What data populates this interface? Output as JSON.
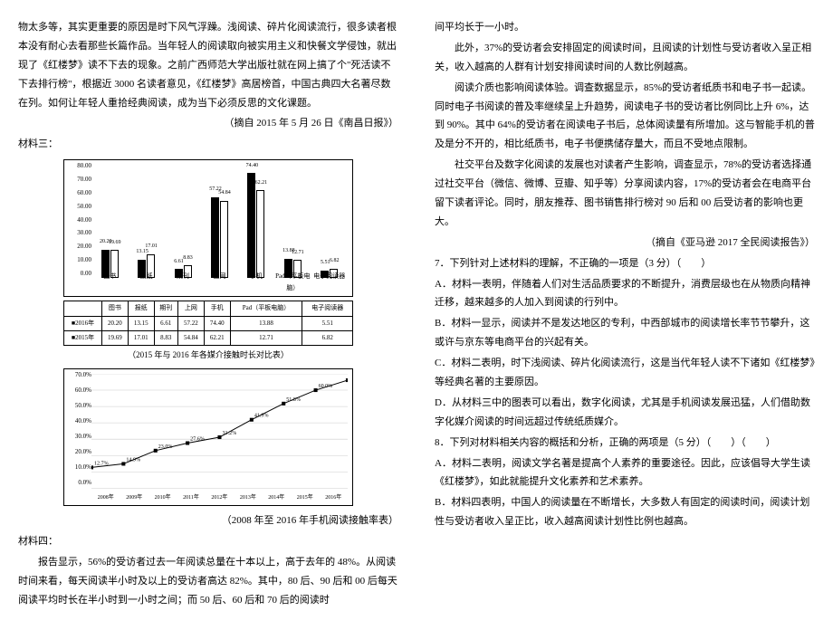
{
  "left": {
    "p1": "物太多等，其实更重要的原因是时下风气浮躁。浅阅读、碎片化阅读流行，很多读者根本没有耐心去看那些长篇作品。当年轻人的阅读取向被实用主义和快餐文学侵蚀，就出现了《红楼梦》读不下去的现象。之前广西师范大学出版社就在网上搞了个\"死活读不下去排行榜\"，根据近 3000 名读者意见，《红楼梦》高居榜首，中国古典四大名著尽数在列。如何让年轻人重拾经典阅读，成为当下必须反思的文化课题。",
    "src1": "（摘自 2015 年 5 月 26 日《南昌日报》）",
    "mat3": "材料三：",
    "chart1": {
      "cap_inner": "（2015 年与 2016 年各媒介接触时长对比表）",
      "y": [
        "80.00",
        "70.00",
        "60.00",
        "50.00",
        "40.00",
        "30.00",
        "20.00",
        "10.00",
        "0.00"
      ],
      "x": [
        "图书",
        "报纸",
        "期刊",
        "上网",
        "手机",
        "Pad（平板电脑）",
        "电子阅读器"
      ],
      "series": {
        "a_label": "■2016年",
        "b_label": "■2015年",
        "a": [
          20.2,
          13.15,
          6.61,
          57.22,
          74.4,
          13.88,
          5.51
        ],
        "b": [
          19.69,
          17.01,
          8.83,
          54.84,
          62.21,
          12.71,
          6.82
        ]
      },
      "max": 80,
      "bar_labels_a": [
        "20.20",
        "13.15",
        "6.61",
        "57.22",
        "74.40",
        "13.88",
        "5.51"
      ],
      "bar_labels_b": [
        "19.69",
        "17.01",
        "8.83",
        "54.84",
        "62.21",
        "12.71",
        "6.82"
      ]
    },
    "chart2": {
      "cap": "（2008 年至 2016 年手机阅读接触率表）",
      "y": [
        "70.0%",
        "60.0%",
        "50.0%",
        "40.0%",
        "30.0%",
        "20.0%",
        "10.0%",
        "0.0%"
      ],
      "x": [
        "2008年",
        "2009年",
        "2010年",
        "2011年",
        "2012年",
        "2013年",
        "2014年",
        "2015年",
        "2016年"
      ],
      "points": [
        12.7,
        14.9,
        23.0,
        27.6,
        31.2,
        41.9,
        51.8,
        60.0,
        66.1
      ],
      "labels": [
        "12.7%",
        "14.9%",
        "23.0%",
        "27.6%",
        "31.2%",
        "41.9%",
        "51.8%",
        "60.0%",
        "66.1%"
      ],
      "max": 70
    },
    "mat4": "材料四：",
    "p2": "报告显示，56%的受访者过去一年阅读总量在十本以上，高于去年的 48%。从阅读时间来看，每天阅读半小时及以上的受访者高达 82%。其中，80 后、90 后和 00 后每天阅读平均时长在半小时到一小时之间；而 50 后、60 后和 70 后的阅读时"
  },
  "right": {
    "p1": "间平均长于一小时。",
    "p2": "此外，37%的受访者会安排固定的阅读时间，且阅读的计划性与受访者收入呈正相关，收入越高的人群有计划安排阅读时间的人数比例越高。",
    "p3": "阅读介质也影响阅读体验。调查数据显示，85%的受访者纸质书和电子书一起读。同时电子书阅读的普及率继续呈上升趋势，阅读电子书的受访者比例同比上升 6%，达到 90%。其中 64%的受访者在阅读电子书后，总体阅读量有所增加。这与智能手机的普及是分不开的，相比纸质书，电子书便携储存量大，而且不受地点限制。",
    "p4": "社交平台及数字化阅读的发展也对读者产生影响，调查显示，78%的受访者选择通过社交平台（微信、微博、豆瓣、知乎等）分享阅读内容，17%的受访者会在电商平台留下读者评论。同时，朋友推荐、图书销售排行榜对 90 后和 00 后受访者的影响也更大。",
    "src2": "（摘自《亚马逊 2017 全民阅读报告》）",
    "q7": "7．下列针对上述材料的理解，不正确的一项是（3 分）（　　）",
    "q7a": "A．材料一表明，伴随着人们对生活品质要求的不断提升，消费层级也在从物质向精神迁移，越来越多的人加入到阅读的行列中。",
    "q7b": "B．材料一显示，阅读并不是发达地区的专利，中西部城市的阅读增长率节节攀升，这或许与京东等电商平台的兴起有关。",
    "q7c": "C．材料二表明，时下浅阅读、碎片化阅读流行，这是当代年轻人读不下诸如《红楼梦》等经典名著的主要原因。",
    "q7d": "D．从材料三中的图表可以看出，数字化阅读，尤其是手机阅读发展迅猛，人们借助数字化媒介阅读的时间远超过传统纸质媒介。",
    "q8": "8．下列对材料相关内容的概括和分析，正确的两项是（5 分）（　　）（　　）",
    "q8a": "A．材料二表明，阅读文学名著是提高个人素养的重要途径。因此，应该倡导大学生读《红楼梦》，如此就能提升文化素养和艺术素养。",
    "q8b": "B．材料四表明，中国人的阅读量在不断增长，大多数人有固定的阅读时间，阅读计划性与受访者收入呈正比，收入越高阅读计划性比例也越高。"
  }
}
